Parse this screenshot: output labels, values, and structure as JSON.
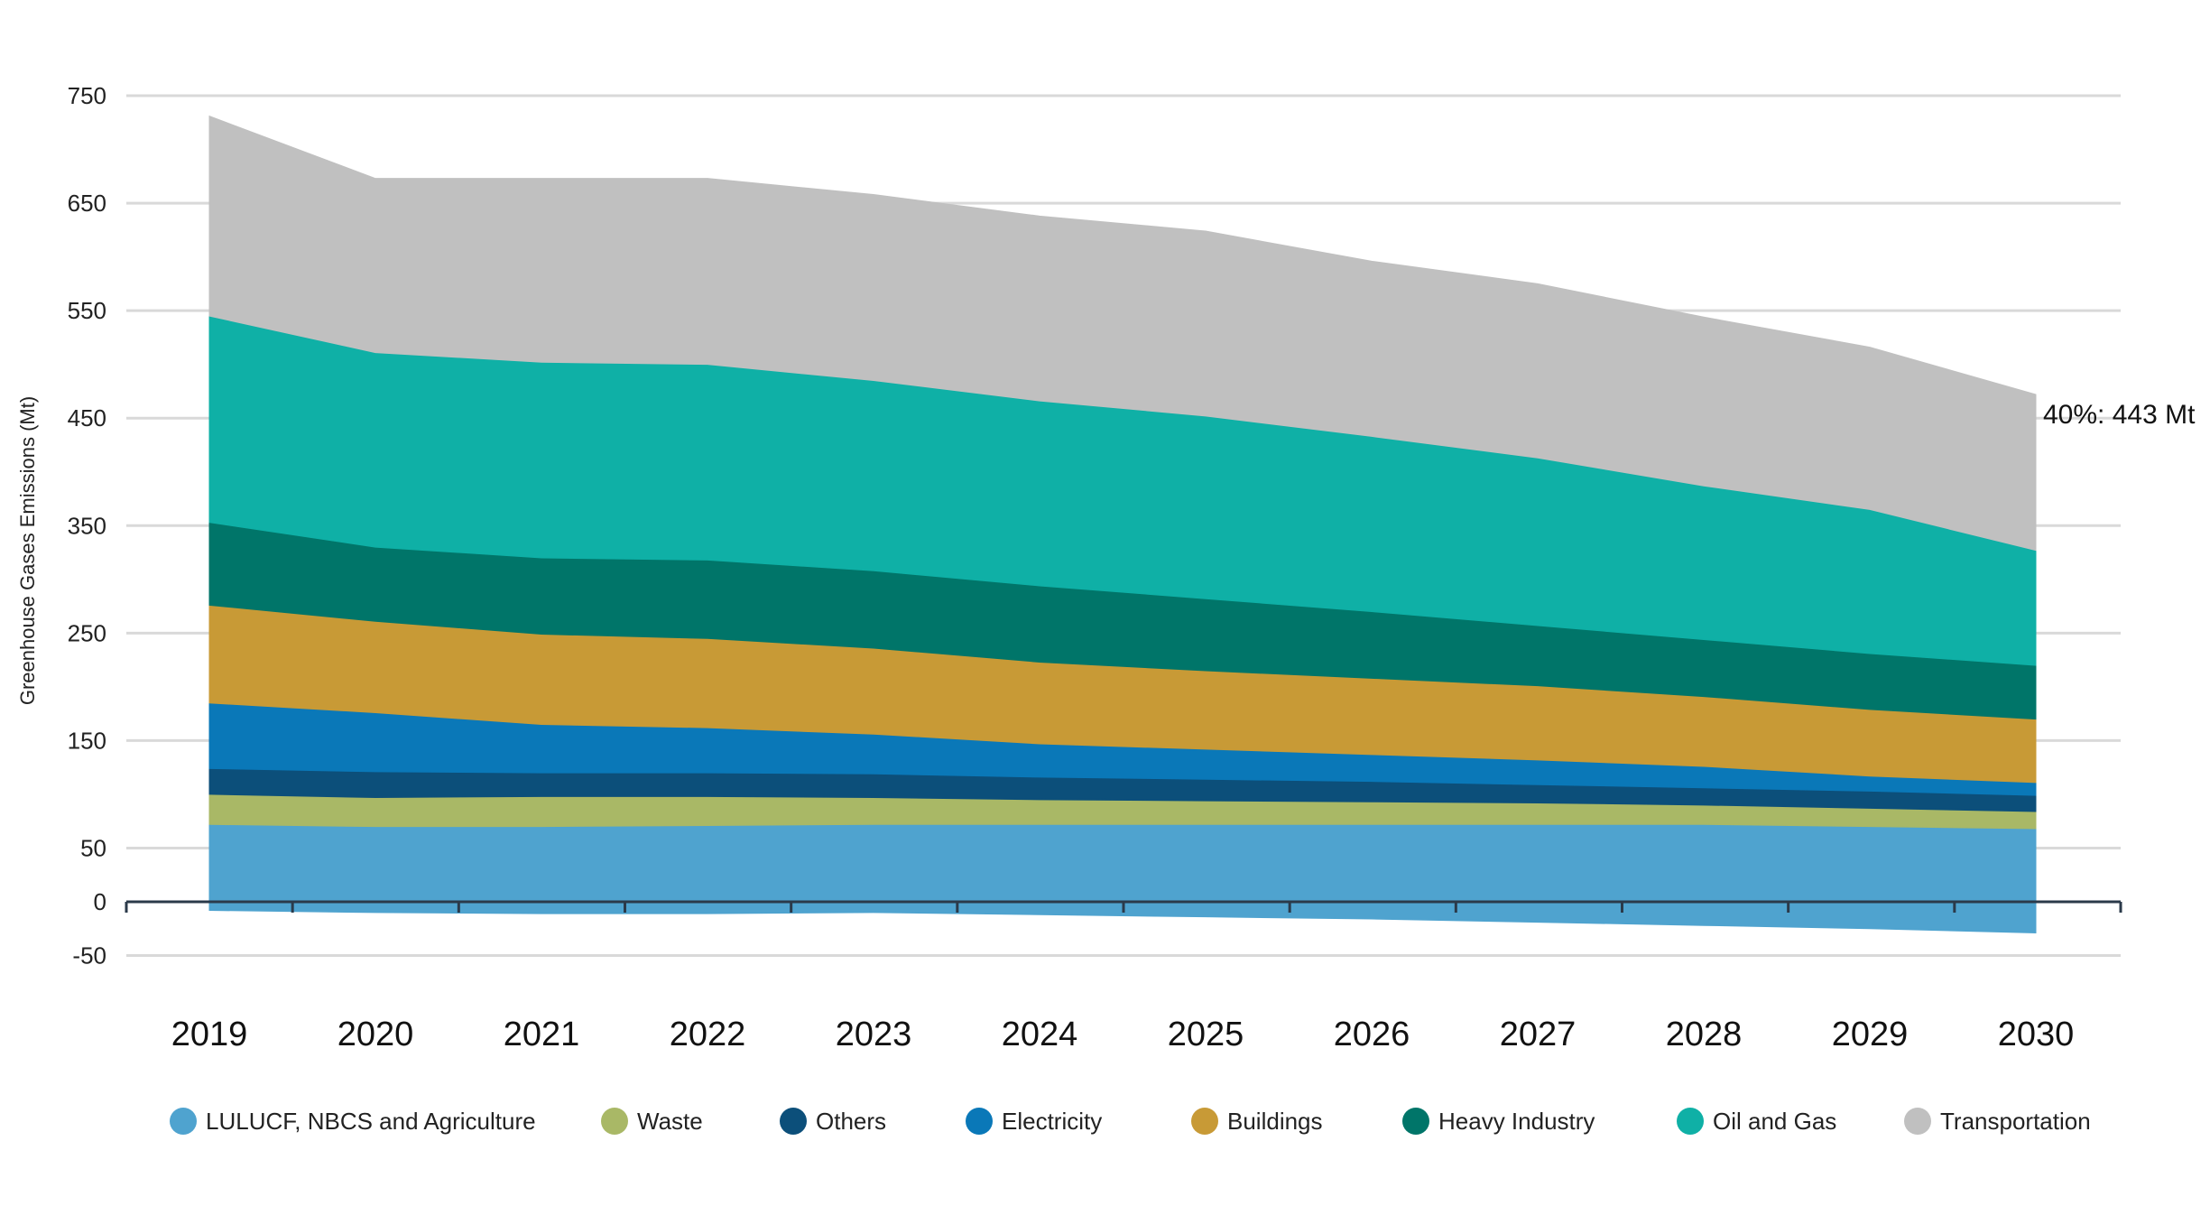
{
  "chart_data": {
    "type": "area",
    "stacked": true,
    "title": "",
    "xlabel": "",
    "ylabel": "Greenhouse Gases Emissions (Mt)",
    "ylim": [
      -50,
      750
    ],
    "yticks": [
      750,
      650,
      550,
      450,
      350,
      250,
      150,
      50,
      0,
      -50
    ],
    "grid": true,
    "legend_position": "bottom",
    "x": [
      "2019",
      "2020",
      "2021",
      "2022",
      "2023",
      "2024",
      "2025",
      "2026",
      "2027",
      "2028",
      "2029",
      "2030"
    ],
    "series": [
      {
        "name": "LULUCF, NBCS and Agriculture",
        "color": "#4fa3cf",
        "values": [
          72,
          70,
          70,
          71,
          72,
          72,
          72,
          72,
          72,
          72,
          70,
          68
        ],
        "negative_values": [
          -8,
          -10,
          -11,
          -11,
          -10,
          -12,
          -14,
          -16,
          -19,
          -22,
          -25,
          -29
        ]
      },
      {
        "name": "Waste",
        "color": "#a9b866",
        "values": [
          28,
          27,
          28,
          27,
          25,
          23,
          22,
          21,
          20,
          18,
          17,
          16
        ]
      },
      {
        "name": "Others",
        "color": "#0c4f7a",
        "values": [
          24,
          24,
          22,
          22,
          22,
          21,
          20,
          19,
          17,
          16,
          16,
          15
        ]
      },
      {
        "name": "Electricity",
        "color": "#0a78b8",
        "values": [
          61,
          55,
          45,
          42,
          37,
          31,
          28,
          25,
          23,
          20,
          14,
          12
        ]
      },
      {
        "name": "Buildings",
        "color": "#c89a36",
        "values": [
          91,
          85,
          84,
          83,
          80,
          76,
          73,
          71,
          69,
          65,
          62,
          59
        ]
      },
      {
        "name": "Heavy Industry",
        "color": "#007569",
        "values": [
          77,
          69,
          71,
          73,
          72,
          71,
          67,
          62,
          56,
          53,
          52,
          50
        ]
      },
      {
        "name": "Oil and Gas",
        "color": "#0fb0a6",
        "values": [
          192,
          181,
          182,
          182,
          177,
          172,
          170,
          163,
          156,
          143,
          134,
          107
        ]
      },
      {
        "name": "Transportation",
        "color": "#c0c0c0",
        "values": [
          186,
          162,
          171,
          173,
          173,
          172,
          172,
          163,
          162,
          157,
          151,
          145
        ]
      }
    ],
    "annotations": [
      {
        "x": "2030",
        "text": "40%: 443 Mt"
      }
    ]
  }
}
